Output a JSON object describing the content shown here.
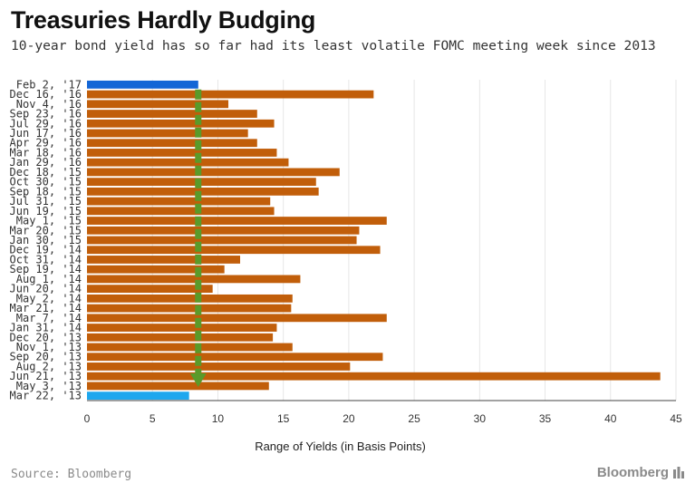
{
  "header": {
    "title": "Treasuries Hardly Budging",
    "subtitle": "10-year bond yield has so far had its least volatile FOMC meeting week since 2013"
  },
  "footer": {
    "source": "Source: Bloomberg",
    "brand": "Bloomberg"
  },
  "colors": {
    "bar": "#c15e0a",
    "latest": "#1366d6",
    "earliest": "#1ea7ee",
    "arrow": "#5a9a2a",
    "grid": "#e6e6e6"
  },
  "chart_data": {
    "type": "bar",
    "orientation": "horizontal",
    "xlabel": "Range of Yields (in Basis Points)",
    "xlim": [
      0,
      45
    ],
    "xticks": [
      0,
      5,
      10,
      15,
      20,
      25,
      30,
      35,
      40,
      45
    ],
    "grid": true,
    "categories": [
      "Feb 2, '17",
      "Dec 16, '16",
      "Nov 4, '16",
      "Sep 23, '16",
      "Jul 29, '16",
      "Jun 17, '16",
      "Apr 29, '16",
      "Mar 18, '16",
      "Jan 29, '16",
      "Dec 18, '15",
      "Oct 30, '15",
      "Sep 18, '15",
      "Jul 31, '15",
      "Jun 19, '15",
      "May 1, '15",
      "Mar 20, '15",
      "Jan 30, '15",
      "Dec 19, '14",
      "Oct 31, '14",
      "Sep 19, '14",
      "Aug 1, '14",
      "Jun 20, '14",
      "May 2, '14",
      "Mar 21, '14",
      "Mar 7, '14",
      "Jan 31, '14",
      "Dec 20, '13",
      "Nov 1, '13",
      "Sep 20, '13",
      "Aug 2, '13",
      "Jun 21, '13",
      "May 3, '13",
      "Mar 22, '13"
    ],
    "values": [
      8.5,
      21.9,
      10.8,
      13.0,
      14.3,
      12.3,
      13.0,
      14.5,
      15.4,
      19.3,
      17.5,
      17.7,
      14.0,
      14.3,
      22.9,
      20.8,
      20.6,
      22.4,
      11.7,
      10.5,
      16.3,
      9.6,
      15.7,
      15.6,
      22.9,
      14.5,
      14.2,
      15.7,
      22.6,
      20.1,
      43.8,
      13.9,
      7.8
    ],
    "highlight": {
      "Feb 2, '17": "latest",
      "Mar 22, '13": "earliest"
    },
    "reference_line": {
      "x": 8.5,
      "style": "dashed green arrow from latest bar"
    }
  }
}
